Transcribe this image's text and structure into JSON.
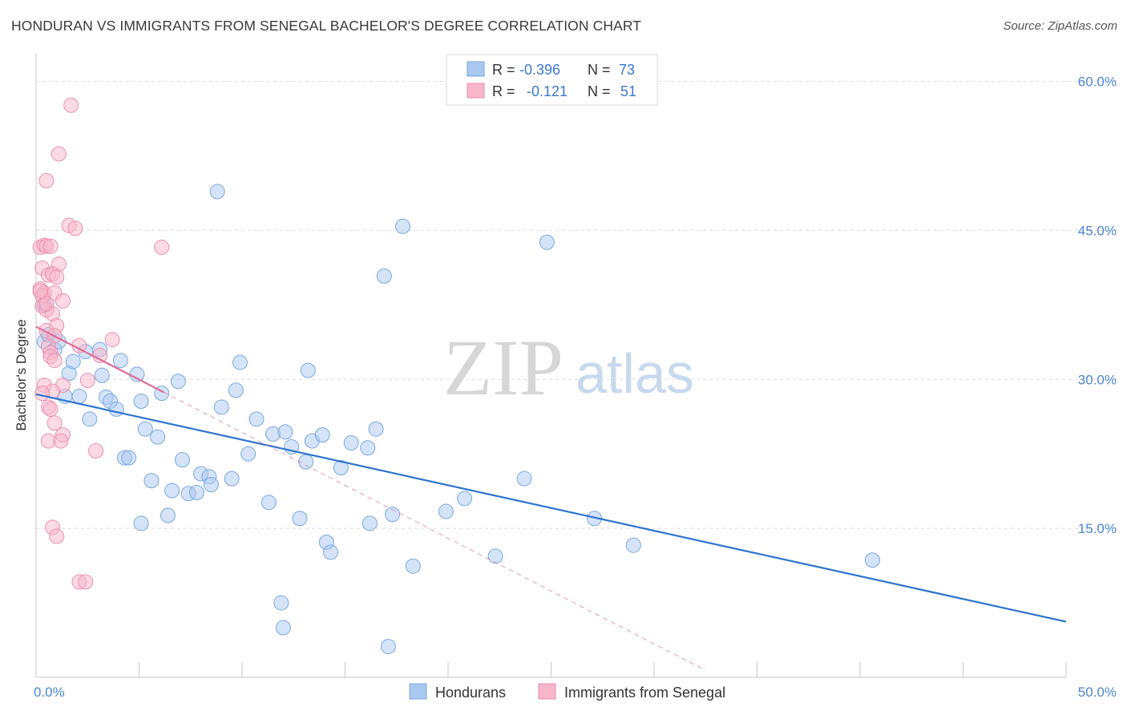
{
  "header": {
    "title": "HONDURAN VS IMMIGRANTS FROM SENEGAL BACHELOR'S DEGREE CORRELATION CHART",
    "source": "Source: ZipAtlas.com"
  },
  "watermark": {
    "zip": "ZIP",
    "atlas": "atlas"
  },
  "legend": {
    "rows": [
      {
        "r_label": "R = ",
        "r_value": "-0.396",
        "n_label": "N = ",
        "n_value": "73",
        "color": "#a9c8f0"
      },
      {
        "r_label": "R = ",
        "r_value": "-0.121",
        "n_label": "N = ",
        "n_value": "51",
        "color": "#f7b6c9"
      }
    ]
  },
  "chart_data": {
    "type": "scatter",
    "title": "HONDURAN VS IMMIGRANTS FROM SENEGAL BACHELOR'S DEGREE CORRELATION CHART",
    "xlabel": "",
    "ylabel": "Bachelor's Degree",
    "xlim": [
      0,
      50
    ],
    "ylim": [
      0,
      60
    ],
    "x_ticks": [
      0,
      5,
      10,
      15,
      20,
      25,
      30,
      35,
      40,
      45,
      50
    ],
    "x_tick_labels": {
      "0": "0.0%",
      "50": "50.0%"
    },
    "y_ticks": [
      15,
      30,
      45,
      60
    ],
    "y_tick_labels": [
      "15.0%",
      "30.0%",
      "45.0%",
      "60.0%"
    ],
    "grid": "horizontal dashed",
    "legend_position": "top-center",
    "series": [
      {
        "name": "Hondurans",
        "color": "#a9c8f0",
        "edge": "#7aa8e0",
        "trend_color": "#2f73d0",
        "trend": {
          "x": [
            0,
            50
          ],
          "y": [
            28.5,
            5.6
          ],
          "dashed_x": null
        },
        "points": [
          [
            0.4,
            37.5
          ],
          [
            0.4,
            33.8
          ],
          [
            0.6,
            34.5
          ],
          [
            0.9,
            33.0
          ],
          [
            1.1,
            33.8
          ],
          [
            1.4,
            28.3
          ],
          [
            1.6,
            30.6
          ],
          [
            1.8,
            31.8
          ],
          [
            2.1,
            28.3
          ],
          [
            2.4,
            32.8
          ],
          [
            2.6,
            26.0
          ],
          [
            3.1,
            33.0
          ],
          [
            3.2,
            30.4
          ],
          [
            3.4,
            28.2
          ],
          [
            3.6,
            27.8
          ],
          [
            3.9,
            27.0
          ],
          [
            4.1,
            31.9
          ],
          [
            4.3,
            22.1
          ],
          [
            4.5,
            22.1
          ],
          [
            4.9,
            30.5
          ],
          [
            5.1,
            27.8
          ],
          [
            5.3,
            25.0
          ],
          [
            5.6,
            19.8
          ],
          [
            5.9,
            24.2
          ],
          [
            6.1,
            28.6
          ],
          [
            6.4,
            16.3
          ],
          [
            6.6,
            18.8
          ],
          [
            6.9,
            29.8
          ],
          [
            7.1,
            21.9
          ],
          [
            7.4,
            18.5
          ],
          [
            7.8,
            18.6
          ],
          [
            8.0,
            20.5
          ],
          [
            8.4,
            20.2
          ],
          [
            8.5,
            19.4
          ],
          [
            8.8,
            48.9
          ],
          [
            9.0,
            27.2
          ],
          [
            9.5,
            20.0
          ],
          [
            9.7,
            28.9
          ],
          [
            9.9,
            31.7
          ],
          [
            10.3,
            22.5
          ],
          [
            10.7,
            26.0
          ],
          [
            11.3,
            17.6
          ],
          [
            11.5,
            24.5
          ],
          [
            12.0,
            5.0
          ],
          [
            11.9,
            7.5
          ],
          [
            12.1,
            24.7
          ],
          [
            12.4,
            23.2
          ],
          [
            12.8,
            16.0
          ],
          [
            13.1,
            21.7
          ],
          [
            13.2,
            30.9
          ],
          [
            13.4,
            23.8
          ],
          [
            13.9,
            24.4
          ],
          [
            14.1,
            13.6
          ],
          [
            14.3,
            12.6
          ],
          [
            14.8,
            21.1
          ],
          [
            15.3,
            23.6
          ],
          [
            16.1,
            23.1
          ],
          [
            16.2,
            15.5
          ],
          [
            16.5,
            25.0
          ],
          [
            16.9,
            40.4
          ],
          [
            17.1,
            3.1
          ],
          [
            17.3,
            16.4
          ],
          [
            17.8,
            45.4
          ],
          [
            18.3,
            11.2
          ],
          [
            19.9,
            16.7
          ],
          [
            20.8,
            18.0
          ],
          [
            22.3,
            12.2
          ],
          [
            23.7,
            20.0
          ],
          [
            24.8,
            43.8
          ],
          [
            27.1,
            16.0
          ],
          [
            29.0,
            13.3
          ],
          [
            40.6,
            11.8
          ],
          [
            5.1,
            15.5
          ]
        ]
      },
      {
        "name": "Immigrants from Senegal",
        "color": "#f7b6c9",
        "edge": "#ec8fad",
        "trend_color": "#de6b94",
        "trend": {
          "x": [
            0,
            6.2
          ],
          "y": [
            35.3,
            28.7
          ],
          "dashed_x": [
            6.2,
            32.5
          ]
        },
        "points": [
          [
            1.7,
            57.6
          ],
          [
            1.1,
            52.7
          ],
          [
            0.5,
            50.0
          ],
          [
            1.6,
            45.5
          ],
          [
            1.9,
            45.2
          ],
          [
            6.1,
            43.3
          ],
          [
            0.2,
            43.3
          ],
          [
            0.4,
            43.5
          ],
          [
            0.5,
            43.4
          ],
          [
            0.7,
            43.4
          ],
          [
            1.1,
            41.6
          ],
          [
            0.3,
            41.2
          ],
          [
            0.6,
            40.5
          ],
          [
            0.8,
            40.6
          ],
          [
            1.0,
            40.3
          ],
          [
            0.2,
            39.1
          ],
          [
            0.4,
            38.7
          ],
          [
            0.3,
            38.4
          ],
          [
            0.9,
            38.7
          ],
          [
            1.3,
            37.9
          ],
          [
            0.3,
            37.4
          ],
          [
            0.5,
            37.0
          ],
          [
            0.8,
            36.6
          ],
          [
            1.0,
            35.4
          ],
          [
            0.5,
            34.9
          ],
          [
            0.9,
            34.4
          ],
          [
            2.1,
            33.4
          ],
          [
            3.7,
            34.0
          ],
          [
            0.6,
            33.3
          ],
          [
            0.7,
            32.7
          ],
          [
            3.1,
            32.4
          ],
          [
            0.7,
            32.3
          ],
          [
            0.9,
            31.9
          ],
          [
            0.4,
            29.4
          ],
          [
            1.3,
            29.4
          ],
          [
            0.8,
            28.8
          ],
          [
            0.3,
            28.6
          ],
          [
            2.5,
            29.9
          ],
          [
            0.6,
            27.2
          ],
          [
            0.7,
            27.0
          ],
          [
            0.9,
            25.6
          ],
          [
            1.3,
            24.4
          ],
          [
            0.6,
            23.8
          ],
          [
            1.2,
            23.8
          ],
          [
            2.9,
            22.8
          ],
          [
            0.8,
            15.1
          ],
          [
            1.0,
            14.2
          ],
          [
            2.1,
            9.6
          ],
          [
            2.4,
            9.6
          ],
          [
            0.5,
            37.6
          ],
          [
            0.2,
            38.9
          ]
        ]
      }
    ]
  },
  "bottom_legend": {
    "items": [
      {
        "label": "Hondurans",
        "color": "#a9c8f0"
      },
      {
        "label": "Immigrants from Senegal",
        "color": "#f7b6c9"
      }
    ]
  }
}
